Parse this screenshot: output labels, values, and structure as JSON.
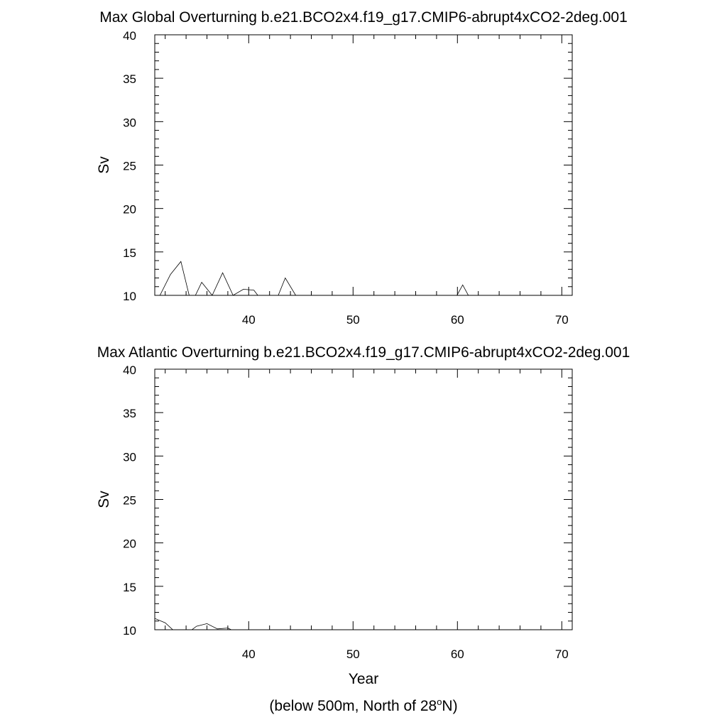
{
  "footnote": {
    "prefix": "(below 500m, North of 28",
    "sup": "o",
    "suffix": "N)"
  },
  "chart_data": [
    {
      "type": "line",
      "title": "Max Global Overturning b.e21.BCO2x4.f19_g17.CMIP6-abrupt4xCO2-2deg.001",
      "xlabel": "",
      "ylabel": "Sv",
      "xlim": [
        31,
        71
      ],
      "ylim": [
        10,
        40
      ],
      "xticks": [
        40,
        50,
        60,
        70
      ],
      "yticks": [
        10,
        15,
        20,
        25,
        30,
        35,
        40
      ],
      "grid": false,
      "series": [
        {
          "x": [
            31.5,
            32.5,
            33.5,
            34.5,
            35.5,
            36.5,
            37.5,
            38.5,
            39.5,
            40.5,
            41.5,
            42.5,
            43.5,
            44.5,
            45.5,
            46.5,
            47.5,
            48.5,
            49.5,
            50.5,
            51.5,
            52.5,
            53.5,
            54.5,
            55.5,
            56.5,
            57.5,
            58.5,
            59.5,
            60.5,
            61.5,
            62.5,
            63.5,
            64.5,
            65.5,
            66.5,
            67.5,
            68.5,
            69.5
          ],
          "values": [
            10.0,
            12.4,
            13.9,
            9.0,
            11.5,
            10.0,
            12.6,
            10.0,
            10.7,
            10.6,
            9.0,
            9.0,
            12.0,
            10.0,
            9.0,
            9.0,
            9.0,
            9.0,
            9.0,
            9.0,
            9.0,
            9.0,
            9.0,
            9.0,
            9.0,
            9.0,
            9.0,
            9.0,
            9.0,
            11.2,
            9.0,
            9.0,
            9.0,
            9.0,
            9.0,
            9.0,
            9.0,
            9.0,
            9.0
          ]
        }
      ]
    },
    {
      "type": "line",
      "title": "Max Atlantic Overturning b.e21.BCO2x4.f19_g17.CMIP6-abrupt4xCO2-2deg.001",
      "xlabel": "Year",
      "ylabel": "Sv",
      "xlim": [
        31,
        71
      ],
      "ylim": [
        10,
        40
      ],
      "xticks": [
        40,
        50,
        60,
        70
      ],
      "yticks": [
        10,
        15,
        20,
        25,
        30,
        35,
        40
      ],
      "grid": false,
      "series": [
        {
          "x": [
            31.0,
            32.0,
            33.0,
            34.0,
            35.0,
            36.0,
            37.0,
            38.0,
            39.0,
            40.0,
            41.0,
            42.0,
            43.0,
            44.0,
            45.0,
            46.0,
            47.0,
            48.0,
            49.0,
            50.0,
            51.0,
            52.0,
            53.0,
            54.0,
            55.0,
            56.0,
            57.0,
            58.0,
            59.0,
            60.0,
            61.0,
            62.0,
            63.0,
            64.0,
            65.0,
            66.0,
            67.0,
            68.0,
            69.0,
            70.0
          ],
          "values": [
            11.3,
            10.8,
            9.7,
            9.5,
            10.4,
            10.7,
            10.1,
            10.2,
            9.6,
            9.5,
            9.5,
            9.5,
            9.5,
            9.5,
            9.5,
            9.5,
            9.5,
            9.5,
            9.5,
            9.5,
            9.5,
            9.5,
            9.5,
            9.5,
            9.5,
            9.5,
            9.5,
            9.5,
            9.5,
            9.5,
            9.5,
            9.5,
            9.5,
            9.5,
            9.5,
            9.5,
            9.5,
            9.5,
            9.5,
            9.5
          ]
        }
      ]
    }
  ]
}
